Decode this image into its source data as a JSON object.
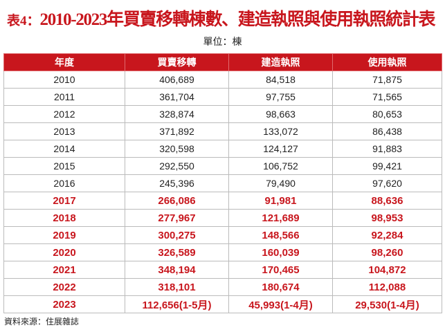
{
  "header": {
    "label": "表4：",
    "title": "2010-2023年買賣移轉棟數、建造執照與使用執照統計表",
    "unit": "單位：棟"
  },
  "table": {
    "columns": [
      "年度",
      "買賣移轉",
      "建造執照",
      "使用執照"
    ],
    "rows": [
      [
        "2010",
        "406,689",
        "84,518",
        "71,875"
      ],
      [
        "2011",
        "361,704",
        "97,755",
        "71,565"
      ],
      [
        "2012",
        "328,874",
        "98,663",
        "80,653"
      ],
      [
        "2013",
        "371,892",
        "133,072",
        "86,438"
      ],
      [
        "2014",
        "320,598",
        "124,127",
        "91,883"
      ],
      [
        "2015",
        "292,550",
        "106,752",
        "99,421"
      ],
      [
        "2016",
        "245,396",
        "79,490",
        "97,620"
      ],
      [
        "2017",
        "266,086",
        "91,981",
        "88,636"
      ],
      [
        "2018",
        "277,967",
        "121,689",
        "98,953"
      ],
      [
        "2019",
        "300,275",
        "148,566",
        "92,284"
      ],
      [
        "2020",
        "326,589",
        "160,039",
        "98,260"
      ],
      [
        "2021",
        "348,194",
        "170,465",
        "104,872"
      ],
      [
        "2022",
        "318,101",
        "180,674",
        "112,088"
      ],
      [
        "2023",
        "112,656(1-5月)",
        "45,993(1-4月)",
        "29,530(1-4月)"
      ]
    ]
  },
  "footer": {
    "source": "資料來源：住展雜誌"
  }
}
